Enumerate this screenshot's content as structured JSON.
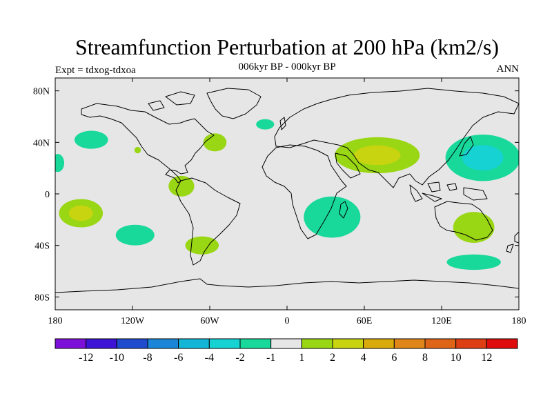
{
  "title": "Streamfunction Perturbation at 200 hPa (km2/s)",
  "subtitle": "006kyr BP - 000kyr BP",
  "left_label": "Expt = tdxog-tdxoa",
  "right_label": "ANN",
  "map": {
    "lon_range": [
      -180,
      180
    ],
    "lat_range": [
      -90,
      90
    ],
    "projection": "cylindrical-equidistant",
    "background_color": "#e6e6e6",
    "x_ticks": [
      {
        "value": -180,
        "label": "180"
      },
      {
        "value": -120,
        "label": "120W"
      },
      {
        "value": -60,
        "label": "60W"
      },
      {
        "value": 0,
        "label": "0"
      },
      {
        "value": 60,
        "label": "60E"
      },
      {
        "value": 120,
        "label": "120E"
      },
      {
        "value": 180,
        "label": "180"
      }
    ],
    "y_ticks": [
      {
        "value": 80,
        "label": "80N"
      },
      {
        "value": 40,
        "label": "40N"
      },
      {
        "value": 0,
        "label": "0"
      },
      {
        "value": -40,
        "label": "40S"
      },
      {
        "value": -80,
        "label": "80S"
      }
    ]
  },
  "colorbar": {
    "colors": [
      "#7d10d8",
      "#3d14d6",
      "#1e4ccc",
      "#1b86d8",
      "#13b6d6",
      "#16d2d2",
      "#18d89a",
      "#e6e6e6",
      "#99d614",
      "#c8d410",
      "#d8aa0c",
      "#de861a",
      "#de6418",
      "#de3e14",
      "#de0c0c"
    ],
    "labels": [
      "-12",
      "-10",
      "-8",
      "-6",
      "-4",
      "-2",
      "-1",
      "1",
      "2",
      "4",
      "6",
      "8",
      "10",
      "12"
    ]
  },
  "chart_data": {
    "type": "contour-map",
    "variable": "Streamfunction Perturbation at 200 hPa",
    "units": "km2/s",
    "levels": [
      -12,
      -10,
      -8,
      -6,
      -4,
      -2,
      -1,
      1,
      2,
      4,
      6,
      8,
      10,
      12
    ],
    "anomalies": [
      {
        "region": "North Pacific (east)",
        "lon": -152,
        "lat": 42,
        "lon_width": 26,
        "lat_width": 14,
        "band": "-1 to -2"
      },
      {
        "region": "Central Pacific edge",
        "lon": -178,
        "lat": 24,
        "lon_width": 10,
        "lat_width": 14,
        "band": "-1 to -2"
      },
      {
        "region": "South Pacific",
        "lon": -160,
        "lat": -15,
        "lon_width": 34,
        "lat_width": 22,
        "band": "1 to 2",
        "core": "2 to 4"
      },
      {
        "region": "Southeast Pacific",
        "lon": -118,
        "lat": -32,
        "lon_width": 30,
        "lat_width": 16,
        "band": "-1 to -2"
      },
      {
        "region": "Mexico",
        "lon": -116,
        "lat": 34,
        "lon_width": 5,
        "lat_width": 5,
        "band": "1 to 2"
      },
      {
        "region": "Northwest South America",
        "lon": -82,
        "lat": 6,
        "lon_width": 20,
        "lat_width": 16,
        "band": "1 to 2"
      },
      {
        "region": "Southern South America",
        "lon": -66,
        "lat": -40,
        "lon_width": 26,
        "lat_width": 14,
        "band": "1 to 2"
      },
      {
        "region": "Northwest Atlantic",
        "lon": -56,
        "lat": 40,
        "lon_width": 18,
        "lat_width": 14,
        "band": "1 to 2"
      },
      {
        "region": "North Atlantic",
        "lon": -17,
        "lat": 54,
        "lon_width": 14,
        "lat_width": 8,
        "band": "-1 to -2"
      },
      {
        "region": "Southern Africa / SW Indian Ocean",
        "lon": 35,
        "lat": -18,
        "lon_width": 44,
        "lat_width": 32,
        "band": "-1 to -2"
      },
      {
        "region": "South Asia / Tibetan Plateau",
        "lon": 70,
        "lat": 30,
        "lon_width": 66,
        "lat_width": 28,
        "band": "1 to 2",
        "core": "2 to 4"
      },
      {
        "region": "Northwest Pacific",
        "lon": 152,
        "lat": 28,
        "lon_width": 58,
        "lat_width": 36,
        "band": "-1 to -2",
        "core": "-2 to -4"
      },
      {
        "region": "Australia",
        "lon": 145,
        "lat": -26,
        "lon_width": 32,
        "lat_width": 24,
        "band": "1 to 2"
      },
      {
        "region": "Southern Ocean south of Australia",
        "lon": 145,
        "lat": -53,
        "lon_width": 42,
        "lat_width": 12,
        "band": "-1 to -2"
      }
    ]
  }
}
